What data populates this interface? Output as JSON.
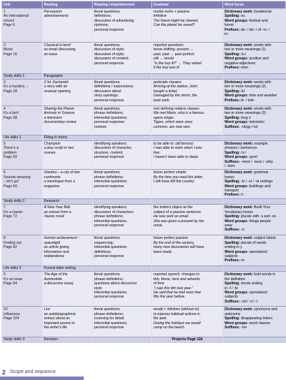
{
  "headers": [
    "Unit",
    "Reading",
    "Reading comprehension",
    "Grammar",
    "Word focus"
  ],
  "rows": [
    {
      "type": "main",
      "unit": [
        "1",
        "An international",
        "school",
        "Page 6"
      ],
      "reading": [
        {
          "t": "Persuasion",
          "i": true
        },
        {
          "t": "advertisements",
          "i": true
        }
      ],
      "comp": [
        "literal questions;",
        "definitions;",
        "discussion of advertising;",
        "opinions;",
        "personal response"
      ],
      "grammar": [
        {
          "t": "modal verbs + passive"
        },
        {
          "t": "infinitive"
        },
        {
          "t": "The forest might be cleared.",
          "i": true
        },
        {
          "t": "Can the planet be saved?",
          "i": true
        }
      ],
      "words": [
        {
          "b": "Dictionary work:",
          "t": " headwords"
        },
        {
          "b": "Spelling:",
          "t": " ou"
        },
        {
          "b": "Word groups:",
          "t": " festival and"
        },
        {
          "t": "forest"
        },
        {
          "b": "Prefixes:",
          "t": " de- / dis- / ef- re- /"
        },
        {
          "t": "in-"
        }
      ]
    },
    {
      "type": "main",
      "unit": [
        "2",
        "Music",
        "Page 16"
      ],
      "reading": [
        {
          "t": "Classical is best!",
          "i": true
        },
        {
          "t": "an email discussing"
        },
        {
          "t": "an issue"
        }
      ],
      "comp": [
        "literal questions;",
        "discussion of style;",
        "discussion of style;",
        "discussion of content;",
        "personal response"
      ],
      "grammar": [
        {
          "t": "reported questions"
        },
        {
          "t": "tense shifting: present →"
        },
        {
          "t": "past; past → past perfect;"
        },
        {
          "t": "will → would"
        },
        {
          "t": "“Is the boy ill?” → They asked",
          "i": true
        },
        {
          "t": "if the boy was ill.",
          "i": true
        }
      ],
      "words": [
        {
          "b": "Dictionary work:",
          "t": " words with"
        },
        {
          "t": "two or more meanings (1)"
        },
        {
          "b": "Spelling:",
          "t": " /u:/"
        },
        {
          "b": "Word groups:",
          "t": " positive and"
        },
        {
          "t": "negative adjectives"
        },
        {
          "b": "Prefixes:",
          "t": " inter-"
        }
      ]
    },
    {
      "type": "ls",
      "unit": "Study skills 1",
      "reading": "Paragraphs"
    },
    {
      "type": "main",
      "unit": [
        "3",
        "It’s a mystery ...",
        "Page 28"
      ],
      "reading": [
        {
          "t": "Z for Zachariah",
          "i": true
        },
        {
          "t": "a story with an"
        },
        {
          "t": "unusual opening"
        }
      ],
      "comp": [
        "literal questions;",
        "definitions / expressions;",
        "discussion about",
        "story openings;",
        "personal response"
      ],
      "grammar": [
        {
          "t": "participle clauses"
        },
        {
          "t": "Arriving at the station, John",
          "i": true
        },
        {
          "t": "bought a ticket.",
          "i": true
        },
        {
          "t": "Damaged by the storm, the",
          "i": true
        },
        {
          "t": "boat sank.",
          "i": true
        }
      ],
      "words": [
        {
          "b": "Dictionary work:",
          "t": " words with"
        },
        {
          "t": "two or more meanings (2)"
        },
        {
          "b": "Spelling:",
          "t": " /e/"
        },
        {
          "b": "Word groups:",
          "t": " time and weather"
        },
        {
          "b": "Prefixes:",
          "t": " bi- / tele-"
        }
      ]
    },
    {
      "type": "main",
      "unit": [
        "4",
        "It’s a fact!",
        "Page 38"
      ],
      "reading": [
        {
          "t": "Sharing the Planet:",
          "i": true
        },
        {
          "t": "Animals in Science",
          "i": true
        },
        {
          "t": "a television"
        },
        {
          "t": "documentary review"
        }
      ],
      "comp": [
        "literal questions;",
        "phrase definitions;",
        "inferential questions;",
        "personal response;",
        "reviews"
      ],
      "grammar": [
        {
          "t": "non-defining relative clauses"
        },
        {
          "t": "We met Mario, who is a famous",
          "i": true
        },
        {
          "t": "opera singer.",
          "i": true
        },
        {
          "t": "Tigers, which were once",
          "i": true
        },
        {
          "t": "common, are now rare.",
          "i": true
        }
      ],
      "words": [
        {
          "b": "Dictionary work:",
          "t": " words with"
        },
        {
          "t": "two or more meanings (3)"
        },
        {
          "b": "Spelling:",
          "t": " long o"
        },
        {
          "b": "Word groups:",
          "t": " television"
        },
        {
          "b": "Suffixes:",
          "t": " -ology /-ist"
        }
      ]
    },
    {
      "type": "ls",
      "unit": "Life skills 1",
      "reading": "Filling in forms"
    },
    {
      "type": "main",
      "unit": [
        "5",
        "There’s a",
        "problem",
        "Page 50"
      ],
      "reading": [
        {
          "t": "Champion",
          "i": true
        },
        {
          "t": "a play script in two"
        },
        {
          "t": "scenes"
        }
      ],
      "comp": [
        "identifying speakers;",
        "discussion of character,",
        "structure, content;",
        "personal response"
      ],
      "grammar": [
        {
          "t": "to be able to: (all tenses)",
          "i": true
        },
        {
          "t": "I was able to swim when I was",
          "i": true
        },
        {
          "t": "four.",
          "i": true
        },
        {
          "t": "I haven’t been able to sleep.",
          "i": true
        }
      ],
      "words": [
        {
          "b": "Dictionary work:",
          "t": " example"
        },
        {
          "t": "phrases / sentences"
        },
        {
          "b": "Spelling:",
          "t": " /u:/"
        },
        {
          "b": "Word groups:",
          "t": " sport"
        },
        {
          "b": "Suffixes:",
          "t": " -ment / -ness / -ship"
        },
        {
          "t": "/ -dom"
        }
      ]
    },
    {
      "type": "main",
      "unit": [
        "6",
        "Sounds amazing",
        "– let’s go!",
        "Page 60"
      ],
      "reading": [
        {
          "t": "Istanbul – a city of two",
          "i": true
        },
        {
          "t": "continents",
          "i": true
        },
        {
          "t": "a travelogue from a"
        },
        {
          "t": "magazine"
        }
      ],
      "comp": [
        "literal questions;",
        "phrase definitions;",
        "inferential questions;",
        "personal response"
      ],
      "grammar": [
        {
          "t": "future perfect simple"
        },
        {
          "t": "By the time you read this letter,",
          "i": true
        },
        {
          "t": "I will have left the country.",
          "i": true
        }
      ],
      "words": [
        {
          "b": "Dictionary work:",
          "t": " grammar"
        },
        {
          "t": "boxes"
        },
        {
          "b": "Spelling:",
          "t": " -le / -el / -al endings"
        },
        {
          "b": "Word groups:",
          "t": " buildings and"
        },
        {
          "t": "transport"
        },
        {
          "b": "Prefixes:",
          "t": " ir-"
        }
      ]
    },
    {
      "type": "ls",
      "unit": "Study skills 2",
      "reading": "Research"
    },
    {
      "type": "main",
      "unit": [
        "7",
        "It’s a classic",
        "Page 72"
      ],
      "reading": [
        {
          "t": "A New Year Ball",
          "i": true
        },
        {
          "t": "an extract from a"
        },
        {
          "t": "classic novel"
        }
      ],
      "comp": [
        "identifying speakers;",
        "discussion of characters;",
        "phrase definitions;",
        "inferential questions;",
        "personal response"
      ],
      "grammar": [
        {
          "t": "the indirect object as the"
        },
        {
          "t": "subject of a passive sentence"
        },
        {
          "t": "He was sent an email.",
          "i": true
        },
        {
          "t": "She was given a present by her",
          "i": true
        },
        {
          "t": "uncle.",
          "i": true
        }
      ],
      "words": [
        {
          "b": "Dictionary work:",
          "t": " Build Your"
        },
        {
          "t": "Vocabulary boxes"
        },
        {
          "b": "Spelling:",
          "t": " plurals with -s and -es"
        },
        {
          "b": "Word groups:",
          "t": " things people"
        },
        {
          "t": "wear"
        },
        {
          "b": "Suffixes:",
          "t": " -ic"
        }
      ]
    },
    {
      "type": "main",
      "unit": [
        "8",
        "Finding out",
        "Page 82"
      ],
      "reading": [
        {
          "t": "Human achievement -",
          "i": true
        },
        {
          "t": "spacelight",
          "i": true
        },
        {
          "t": "an article giving"
        },
        {
          "t": "information and"
        },
        {
          "t": "explanations"
        }
      ],
      "comp": [
        "literal questions;",
        "sequencing;",
        "inferential questions;",
        "definitions;",
        "personal response"
      ],
      "grammar": [
        {
          "t": "future perfect passive"
        },
        {
          "t": "By the end of the century,",
          "i": true
        },
        {
          "t": "many new discoveries will have",
          "i": true
        },
        {
          "t": "been made.",
          "i": true
        }
      ],
      "words": [
        {
          "b": "Dictionary work:",
          "t": " subject labels"
        },
        {
          "b": "Spelling:",
          "t": " plurals of words"
        },
        {
          "t": "ending in y"
        },
        {
          "b": "Word groups:",
          "t": " specialised"
        },
        {
          "t": "subjects"
        },
        {
          "b": "Prefixes:",
          "t": " re-"
        }
      ]
    },
    {
      "type": "ls",
      "unit": "Life skills 2",
      "reading": "Formal letter writing"
    },
    {
      "type": "main",
      "unit": [
        "9",
        "It’s an issue",
        "Page 94"
      ],
      "reading": [
        {
          "t": "The Age of the",
          "i": true
        },
        {
          "t": "Automobile",
          "i": true
        },
        {
          "t": "a discursive essay"
        }
      ],
      "comp": [
        "literal questions;",
        "phrase definitions;",
        "questions about discursive",
        "style;",
        "inferential questions;",
        "personal response"
      ],
      "grammar": [
        {
          "t": "reported speech: changes to"
        },
        {
          "t": "this, these, here and adverbs",
          "i": true
        },
        {
          "t": "of time"
        },
        {
          "t": "“I saw this film last year.”",
          "i": true
        },
        {
          "t": "He said that he had seen that",
          "i": true
        },
        {
          "t": "film the year before.",
          "i": true
        }
      ],
      "words": [
        {
          "b": "Dictionary work:",
          "t": " bold words in"
        },
        {
          "t": "the definition"
        },
        {
          "b": "Spelling:",
          "t": " words ending"
        },
        {
          "t": "in -f / -fe"
        },
        {
          "b": "Word groups:",
          "t": " specialised"
        },
        {
          "t": "subjects"
        },
        {
          "b": "Suffixes:",
          "t": " -ed / -d / -t"
        }
      ]
    },
    {
      "type": "main",
      "unit": [
        "10",
        "Influences",
        "Page 104"
      ],
      "reading": [
        {
          "t": "Leo",
          "i": true
        },
        {
          "t": "an autobiographical"
        },
        {
          "t": "extract about an"
        },
        {
          "t": "important person in"
        },
        {
          "t": "the writer’s life"
        }
      ],
      "comp": [
        "literal questions;",
        "phrase definitions;",
        "scanning for detail;",
        "inferential questions;",
        "personal response"
      ],
      "grammar": [
        {
          "t": "would + infinitive (without to)"
        },
        {
          "t": "to express habitual actions in"
        },
        {
          "t": "the past"
        },
        {
          "t": "During the holidays we would",
          "i": true
        },
        {
          "t": "camp on the beach.",
          "i": true
        }
      ],
      "words": [
        {
          "b": "Dictionary work:",
          "t": " synonyms and"
        },
        {
          "t": "antonyms"
        },
        {
          "b": "Spelling:",
          "t": " disappearing letters"
        },
        {
          "b": "Word groups:",
          "t": " word classes"
        },
        {
          "b": "Suffixes:",
          "t": " -ive"
        }
      ]
    },
    {
      "type": "ls",
      "unit": "Study skills 3",
      "reading": "Revision",
      "grammar": "Projects   Page 116"
    }
  ],
  "footer": {
    "page_number": "2",
    "title": "Scope and sequence"
  }
}
